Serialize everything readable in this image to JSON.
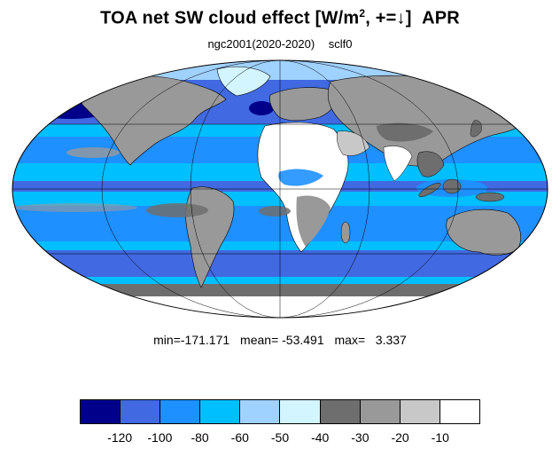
{
  "title": {
    "main": "TOA net SW cloud effect [W/m",
    "sup": "2",
    "after": ", +=↓]",
    "month": "APR"
  },
  "subtitle": {
    "case": "ngc2001(2020-2020)",
    "variable": "sclf0"
  },
  "stats": {
    "min": "min=-171.171",
    "mean": "mean= -53.491",
    "max": "max=   3.337"
  },
  "colorbar": {
    "colors": [
      "#00008b",
      "#4169e1",
      "#1e90ff",
      "#00bfff",
      "#a0d2ff",
      "#d2f5ff",
      "#6e6e6e",
      "#999999",
      "#c8c8c8",
      "#ffffff"
    ],
    "labels": [
      "-120",
      "-100",
      "-80",
      "-60",
      "-50",
      "-40",
      "-30",
      "-20",
      "-10"
    ]
  },
  "map": {
    "projection": "mollweide",
    "ocean_color": "#00bfff",
    "land_color": "#c8c8c8"
  }
}
